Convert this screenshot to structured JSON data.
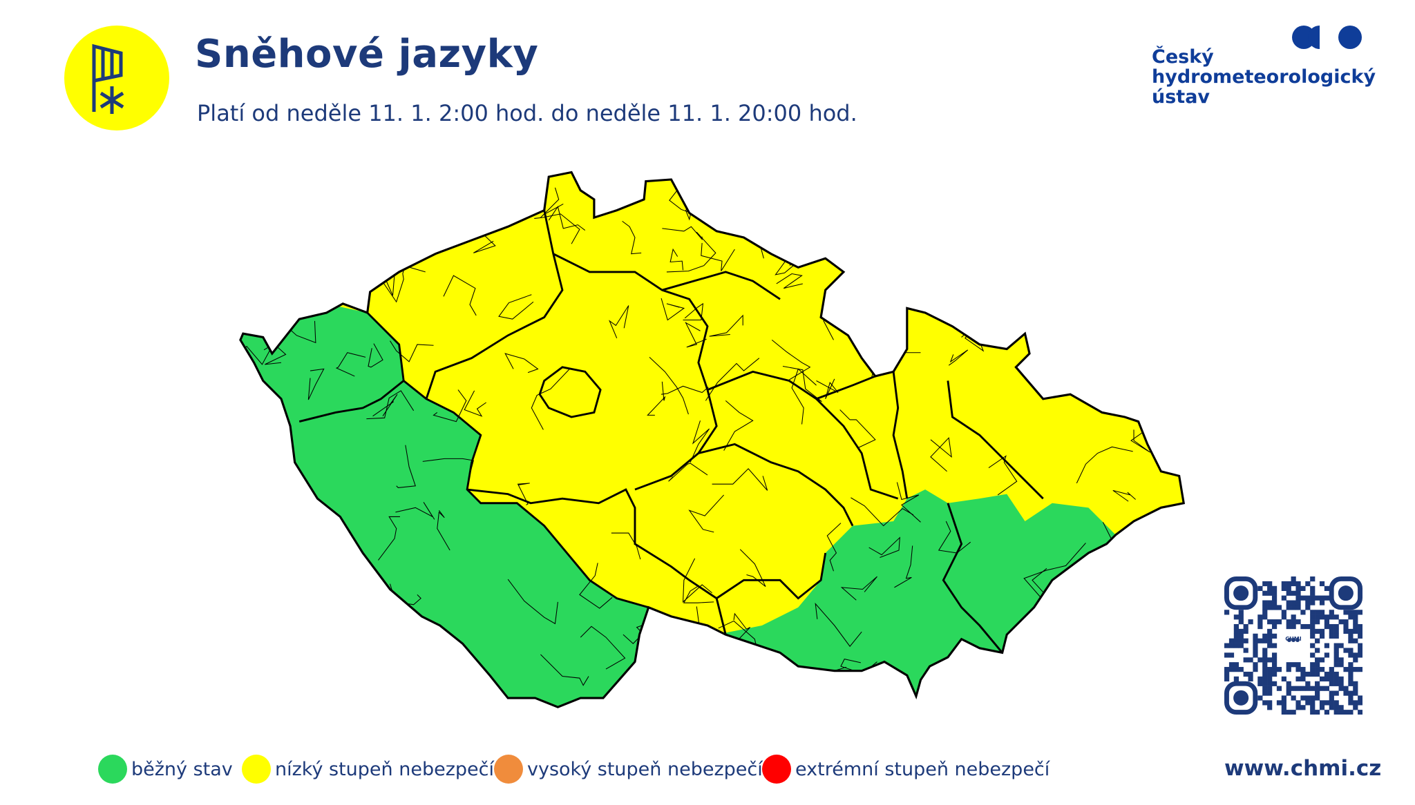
{
  "header": {
    "title": "Sněhové jazyky",
    "subtitle": "Platí od neděle 11. 1. 2:00 hod. do neděle 11. 1. 20:00 hod.",
    "icon": "windsock-snowflake-icon",
    "icon_bg_color": "#ffff00"
  },
  "logo": {
    "lines": [
      "Český",
      "hydrometeorologický",
      "ústav"
    ],
    "color": "#0f3d99"
  },
  "map": {
    "region_colors": {
      "green": "#2bd85c",
      "yellow": "#ffff00"
    },
    "levels_shown": [
      "běžný stav",
      "nízký stupeň nebezpečí"
    ]
  },
  "legend": [
    {
      "label": "běžný stav",
      "color": "#2bd85c"
    },
    {
      "label": "nízký stupeň nebezpečí",
      "color": "#ffff00"
    },
    {
      "label": "vysoký stupeň nebezpečí",
      "color": "#f08c3c"
    },
    {
      "label": "extrémní stupeň nebezpečí",
      "color": "#ff0000"
    }
  ],
  "qr": {
    "center_label": "CHMI"
  },
  "footer": {
    "website": "www.chmi.cz"
  }
}
